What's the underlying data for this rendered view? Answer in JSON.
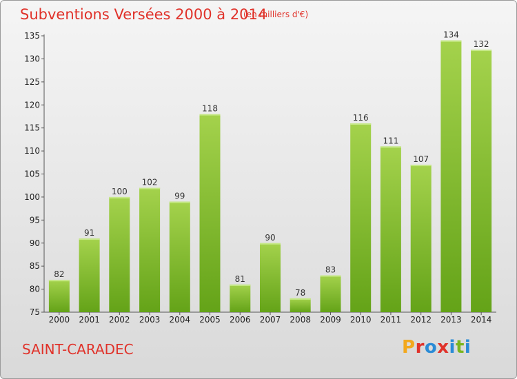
{
  "header": {
    "title": "Subventions Versées 2000 à 2014",
    "unit": "(en milliers d'€)"
  },
  "footer": {
    "place": "SAINT-CARADEC",
    "logo": "Proxiti",
    "logo_colors": [
      "#f2a81d",
      "#e0322a",
      "#2a8bd6",
      "#e0322a",
      "#2a8bd6",
      "#7ab51d",
      "#2a8bd6"
    ]
  },
  "colors": {
    "bar_light": "#a4d24c",
    "bar_dark": "#64a318",
    "text_red": "#e0322a"
  },
  "chart_data": {
    "type": "bar",
    "categories": [
      "2000",
      "2001",
      "2002",
      "2003",
      "2004",
      "2005",
      "2006",
      "2007",
      "2008",
      "2009",
      "2010",
      "2011",
      "2012",
      "2013",
      "2014"
    ],
    "values": [
      82,
      91,
      100,
      102,
      99,
      118,
      81,
      90,
      78,
      83,
      116,
      111,
      107,
      134,
      132
    ],
    "ylim": [
      75,
      135
    ],
    "yticks": [
      75,
      80,
      85,
      90,
      95,
      100,
      105,
      110,
      115,
      120,
      125,
      130,
      135
    ],
    "grid": false,
    "title": "Subventions Versées 2000 à 2014",
    "xlabel": "",
    "ylabel": ""
  }
}
